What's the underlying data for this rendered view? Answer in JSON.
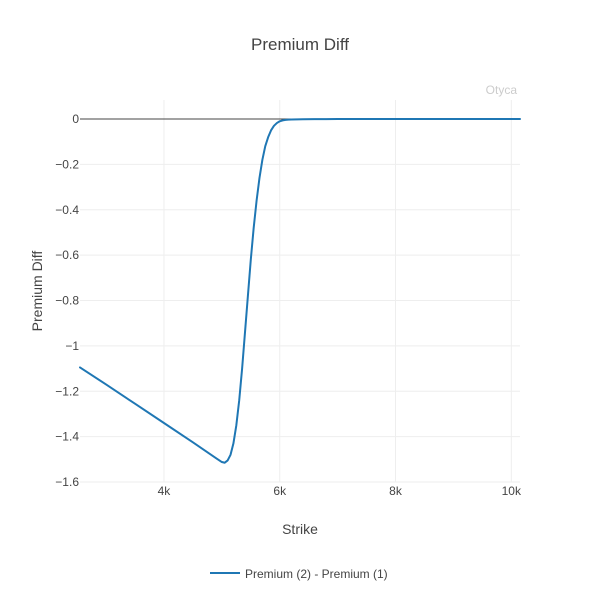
{
  "chart_data": {
    "type": "line",
    "title": "Premium Diff",
    "xlabel": "Strike",
    "ylabel": "Premium Diff",
    "watermark": "Otyca",
    "xlim": [
      2550,
      10150
    ],
    "ylim": [
      -1.6,
      0.08
    ],
    "x_ticks": [
      4000,
      6000,
      8000,
      10000
    ],
    "x_tick_labels": [
      "4k",
      "6k",
      "8k",
      "10k"
    ],
    "y_ticks": [
      0,
      -0.2,
      -0.4,
      -0.6,
      -0.8,
      -1,
      -1.2,
      -1.4,
      -1.6
    ],
    "y_tick_labels": [
      "0",
      "−0.2",
      "−0.4",
      "−0.6",
      "−0.8",
      "−1",
      "−1.2",
      "−1.4",
      "−1.6"
    ],
    "grid": true,
    "legend_position": "bottom",
    "series": [
      {
        "name": "Premium (2) - Premium (1)",
        "color": "#1f77b4",
        "x": [
          2550,
          3000,
          3500,
          4000,
          4500,
          4900,
          5000,
          5050,
          5100,
          5150,
          5200,
          5250,
          5300,
          5350,
          5400,
          5450,
          5500,
          5550,
          5600,
          5650,
          5700,
          5750,
          5800,
          5850,
          5900,
          5950,
          6000,
          6050,
          6100,
          6150,
          6200,
          6300,
          6400,
          6600,
          6800,
          7000,
          8000,
          9000,
          10150
        ],
        "values": [
          -1.095,
          -1.17,
          -1.255,
          -1.34,
          -1.425,
          -1.495,
          -1.512,
          -1.515,
          -1.505,
          -1.48,
          -1.43,
          -1.35,
          -1.24,
          -1.1,
          -0.94,
          -0.78,
          -0.62,
          -0.48,
          -0.36,
          -0.26,
          -0.18,
          -0.12,
          -0.08,
          -0.05,
          -0.03,
          -0.018,
          -0.01,
          -0.006,
          -0.004,
          -0.003,
          -0.002,
          -0.0015,
          -0.001,
          -0.0006,
          -0.0003,
          -0.0002,
          0,
          0,
          0
        ]
      }
    ]
  }
}
